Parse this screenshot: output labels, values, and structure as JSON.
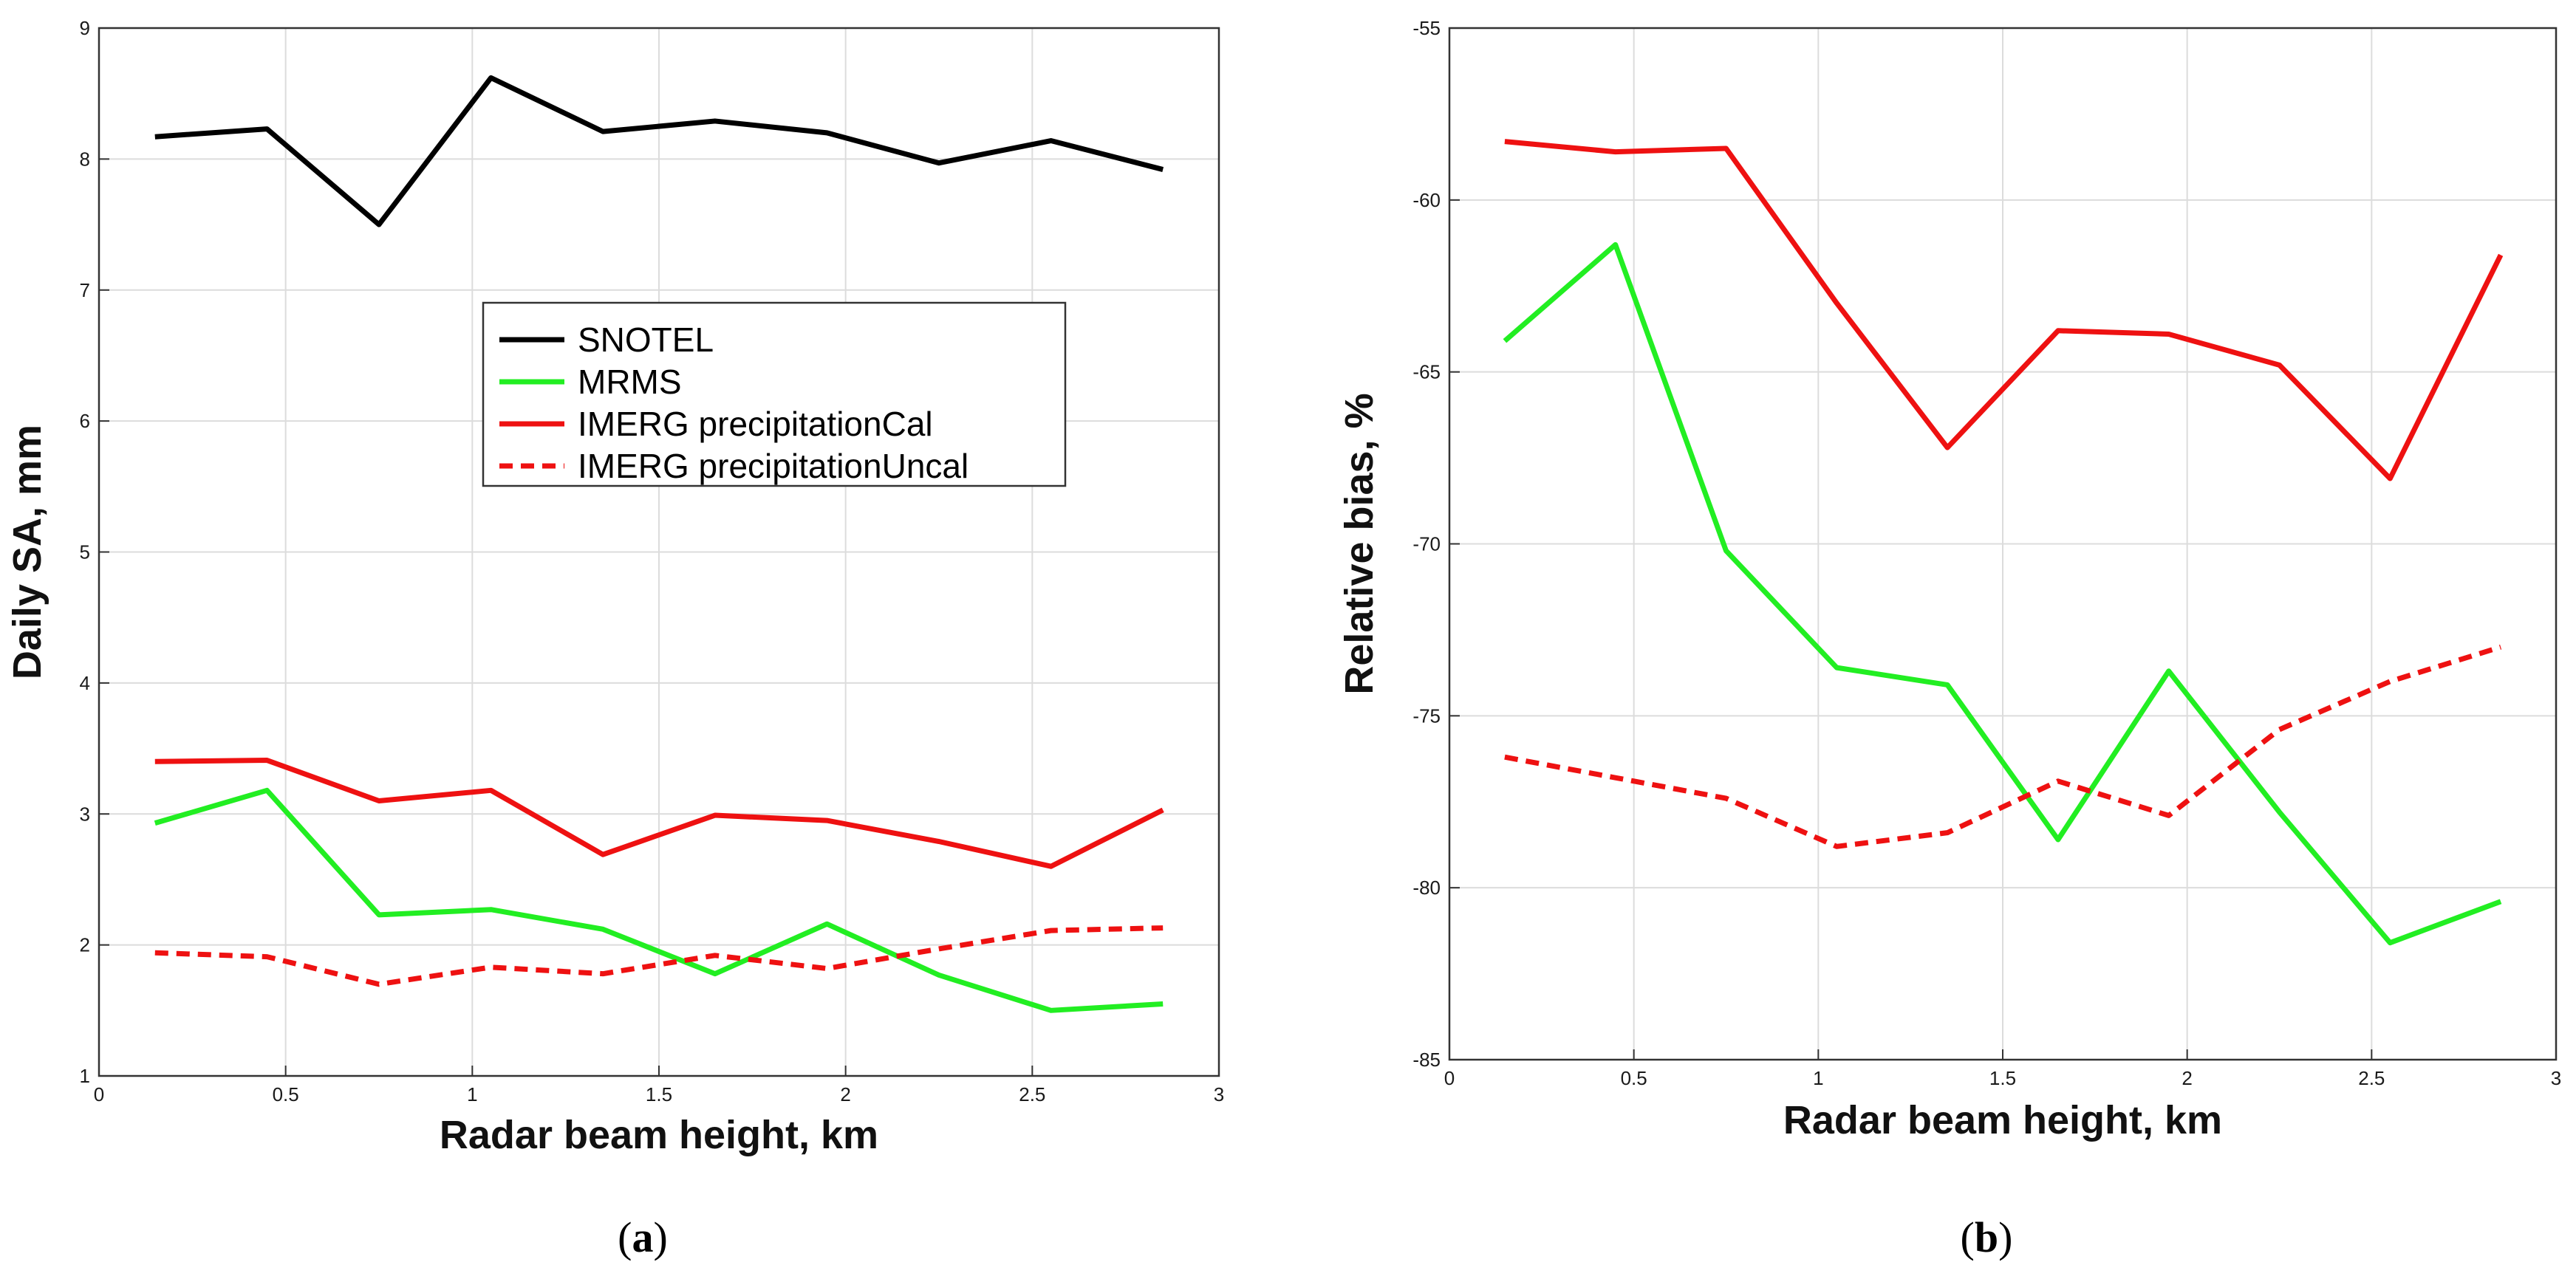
{
  "chart_data": [
    {
      "type": "line",
      "panel": "a",
      "panel_label": "(a)",
      "panel_paren_open": "(",
      "panel_letter": "a",
      "panel_paren_close": ")",
      "xlabel": "Radar beam height, km",
      "ylabel": "Daily SA, mm",
      "xlim": [
        0,
        3
      ],
      "ylim": [
        1,
        9
      ],
      "xticks": [
        0,
        0.5,
        1,
        1.5,
        2,
        2.5,
        3
      ],
      "xtick_labels": [
        "0",
        "0.5",
        "1",
        "1.5",
        "2",
        "2.5",
        "3"
      ],
      "yticks": [
        1,
        2,
        3,
        4,
        5,
        6,
        7,
        8,
        9
      ],
      "ytick_labels": [
        "1",
        "2",
        "3",
        "4",
        "5",
        "6",
        "7",
        "8",
        "9"
      ],
      "grid": true,
      "legend": {
        "placement": "center-right",
        "entries": [
          "SNOTEL",
          "MRMS",
          "IMERG precipitationCal",
          "IMERG precipitationUncal"
        ]
      },
      "x": [
        0.15,
        0.45,
        0.75,
        1.05,
        1.35,
        1.65,
        1.95,
        2.25,
        2.55,
        2.85
      ],
      "series": [
        {
          "name": "SNOTEL",
          "color": "#000000",
          "dash": "solid",
          "values": [
            8.17,
            8.23,
            7.5,
            8.62,
            8.21,
            8.29,
            8.2,
            7.97,
            8.14,
            7.92
          ]
        },
        {
          "name": "MRMS",
          "color": "#22ee22",
          "dash": "solid",
          "values": [
            2.93,
            3.18,
            2.23,
            2.27,
            2.12,
            1.78,
            2.16,
            1.77,
            1.5,
            1.55
          ]
        },
        {
          "name": "IMERG precipitationCal",
          "color": "#ee1111",
          "dash": "solid",
          "values": [
            3.4,
            3.41,
            3.1,
            3.18,
            2.69,
            2.99,
            2.95,
            2.79,
            2.6,
            3.03
          ]
        },
        {
          "name": "IMERG precipitationUncal",
          "color": "#ee1111",
          "dash": "dashed",
          "values": [
            1.94,
            1.91,
            1.7,
            1.83,
            1.78,
            1.92,
            1.82,
            1.97,
            2.11,
            2.13
          ]
        }
      ]
    },
    {
      "type": "line",
      "panel": "b",
      "panel_label": "(b)",
      "panel_paren_open": "(",
      "panel_letter": "b",
      "panel_paren_close": ")",
      "xlabel": "Radar beam height, km",
      "ylabel": "Relative bias, %",
      "xlim": [
        0,
        3
      ],
      "ylim": [
        -85,
        -55
      ],
      "xticks": [
        0,
        0.5,
        1,
        1.5,
        2,
        2.5,
        3
      ],
      "xtick_labels": [
        "0",
        "0.5",
        "1",
        "1.5",
        "2",
        "2.5",
        "3"
      ],
      "yticks": [
        -85,
        -80,
        -75,
        -70,
        -65,
        -60,
        -55
      ],
      "ytick_labels": [
        "-85",
        "-80",
        "-75",
        "-70",
        "-65",
        "-60",
        "-55"
      ],
      "grid": true,
      "x": [
        0.15,
        0.45,
        0.75,
        1.05,
        1.35,
        1.65,
        1.95,
        2.25,
        2.55,
        2.85
      ],
      "series": [
        {
          "name": "MRMS",
          "color": "#22ee22",
          "dash": "solid",
          "values": [
            -64.1,
            -61.3,
            -70.2,
            -73.6,
            -74.1,
            -78.6,
            -73.7,
            -77.8,
            -81.6,
            -80.4
          ]
        },
        {
          "name": "IMERG precipitationCal",
          "color": "#ee1111",
          "dash": "solid",
          "values": [
            -58.3,
            -58.6,
            -58.5,
            -63.0,
            -67.2,
            -63.8,
            -63.9,
            -64.8,
            -68.1,
            -61.6
          ]
        },
        {
          "name": "IMERG precipitationUncal",
          "color": "#ee1111",
          "dash": "dashed",
          "values": [
            -76.2,
            -76.8,
            -77.4,
            -78.8,
            -78.4,
            -76.9,
            -77.9,
            -75.4,
            -74.0,
            -73.0
          ]
        }
      ]
    }
  ]
}
